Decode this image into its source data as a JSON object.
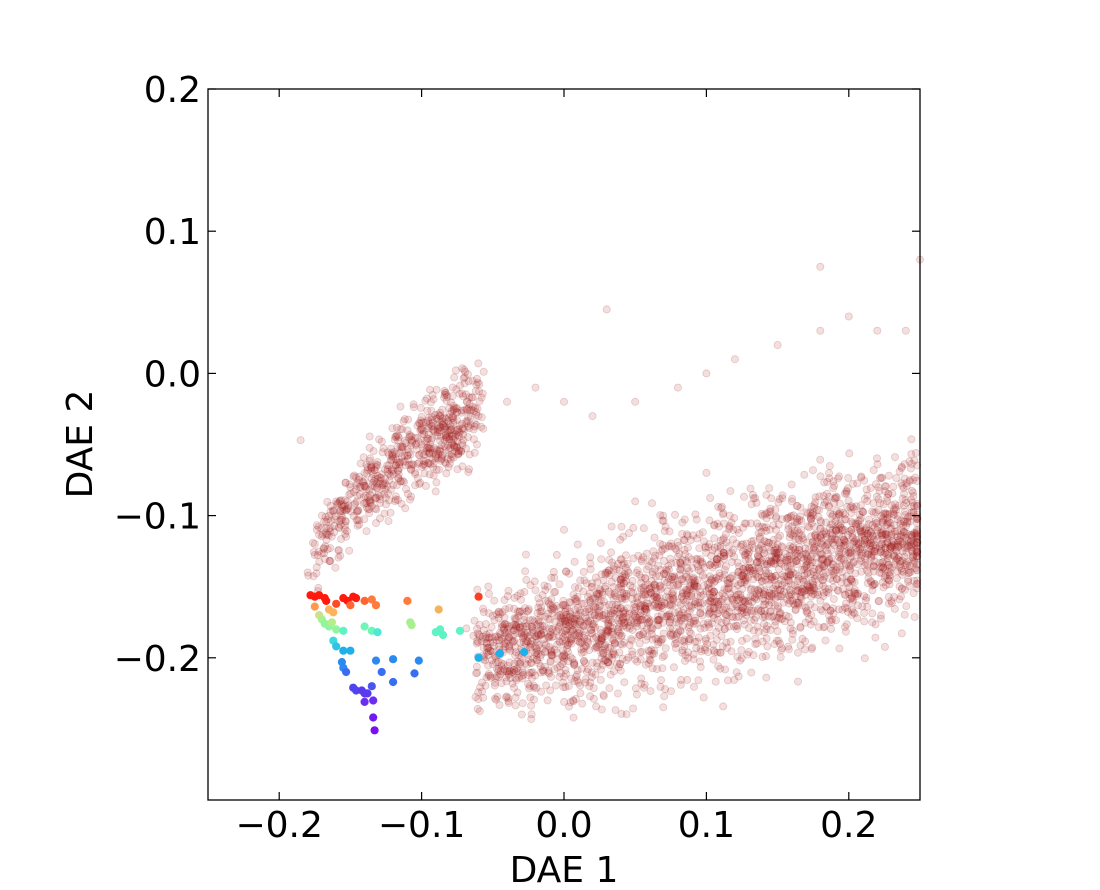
{
  "chart_data": {
    "type": "scatter",
    "title": "",
    "xlabel": "DAE 1",
    "ylabel": "DAE 2",
    "xlim": [
      -0.25,
      0.25
    ],
    "ylim": [
      -0.3,
      0.2
    ],
    "grid": false,
    "legend": "none",
    "x_ticks": [
      {
        "value": -0.2,
        "label": "−0.2"
      },
      {
        "value": -0.1,
        "label": "−0.1"
      },
      {
        "value": 0.0,
        "label": "0.0"
      },
      {
        "value": 0.1,
        "label": "0.1"
      },
      {
        "value": 0.2,
        "label": "0.2"
      }
    ],
    "y_ticks": [
      {
        "value": 0.2,
        "label": "0.2"
      },
      {
        "value": 0.1,
        "label": "0.1"
      },
      {
        "value": 0.0,
        "label": "0.0"
      },
      {
        "value": -0.1,
        "label": "−0.1"
      },
      {
        "value": -0.2,
        "label": "−0.2"
      }
    ],
    "background_series": {
      "color": "#b22222",
      "opacity": 0.15,
      "approx_count": 3500,
      "shape": "curved band from (-0.18,-0.16) rising to (0.25,0.02)",
      "points_sample": [
        [
          -0.18,
          -0.14
        ],
        [
          -0.175,
          -0.12
        ],
        [
          -0.17,
          -0.1
        ],
        [
          -0.16,
          -0.09
        ],
        [
          -0.15,
          -0.08
        ],
        [
          -0.14,
          -0.07
        ],
        [
          -0.12,
          -0.06
        ],
        [
          -0.1,
          -0.05
        ],
        [
          -0.08,
          -0.04
        ],
        [
          -0.06,
          -0.03
        ],
        [
          -0.04,
          -0.02
        ],
        [
          -0.02,
          -0.01
        ],
        [
          0.0,
          -0.02
        ],
        [
          0.02,
          -0.03
        ],
        [
          0.05,
          -0.02
        ],
        [
          0.08,
          -0.01
        ],
        [
          0.1,
          0.0
        ],
        [
          0.12,
          0.01
        ],
        [
          0.15,
          0.02
        ],
        [
          0.18,
          0.03
        ],
        [
          0.2,
          0.04
        ],
        [
          0.22,
          0.03
        ],
        [
          0.24,
          0.03
        ],
        [
          0.25,
          0.08
        ],
        [
          -0.185,
          -0.047
        ],
        [
          0.03,
          0.045
        ],
        [
          0.18,
          0.075
        ],
        [
          0.05,
          -0.09
        ],
        [
          0.1,
          -0.07
        ],
        [
          0.0,
          -0.11
        ]
      ]
    },
    "highlight_series": {
      "colormap": "rainbow",
      "points": [
        [
          -0.178,
          -0.156,
          "#ff1a0d"
        ],
        [
          -0.175,
          -0.157,
          "#ff1a0d"
        ],
        [
          -0.172,
          -0.156,
          "#ff1a0d"
        ],
        [
          -0.168,
          -0.158,
          "#ff1a0d"
        ],
        [
          -0.167,
          -0.16,
          "#ff1a0d"
        ],
        [
          -0.16,
          -0.162,
          "#ff4a26"
        ],
        [
          -0.155,
          -0.158,
          "#ff1a0d"
        ],
        [
          -0.152,
          -0.16,
          "#ff1a0d"
        ],
        [
          -0.148,
          -0.157,
          "#ff1a0d"
        ],
        [
          -0.146,
          -0.158,
          "#ff1a0d"
        ],
        [
          -0.15,
          -0.163,
          "#ff6633"
        ],
        [
          -0.14,
          -0.16,
          "#ff6633"
        ],
        [
          -0.135,
          -0.159,
          "#ff7a3d"
        ],
        [
          -0.132,
          -0.163,
          "#ff7a3d"
        ],
        [
          -0.11,
          -0.16,
          "#ff7a3d"
        ],
        [
          -0.06,
          -0.157,
          "#ff3d1f"
        ],
        [
          -0.088,
          -0.166,
          "#f2b35e"
        ],
        [
          -0.175,
          -0.164,
          "#ff9a4d"
        ],
        [
          -0.165,
          -0.166,
          "#ffb259"
        ],
        [
          -0.162,
          -0.168,
          "#ffb259"
        ],
        [
          -0.172,
          -0.17,
          "#cfe08a"
        ],
        [
          -0.17,
          -0.173,
          "#a8f08f"
        ],
        [
          -0.168,
          -0.176,
          "#8ff59e"
        ],
        [
          -0.165,
          -0.178,
          "#8ff59e"
        ],
        [
          -0.16,
          -0.18,
          "#8ff59e"
        ],
        [
          -0.163,
          -0.175,
          "#b8ec8a"
        ],
        [
          -0.108,
          -0.175,
          "#a8f08f"
        ],
        [
          -0.107,
          -0.177,
          "#a8f08f"
        ],
        [
          -0.14,
          -0.178,
          "#6ef5b8"
        ],
        [
          -0.135,
          -0.181,
          "#6ef5b8"
        ],
        [
          -0.155,
          -0.181,
          "#5ef2c4"
        ],
        [
          -0.131,
          -0.182,
          "#4de8d6"
        ],
        [
          -0.09,
          -0.182,
          "#5ef2c4"
        ],
        [
          -0.087,
          -0.18,
          "#5ef2c4"
        ],
        [
          -0.085,
          -0.184,
          "#5ef2c4"
        ],
        [
          -0.073,
          -0.181,
          "#5ef2c4"
        ],
        [
          -0.162,
          -0.188,
          "#3dd9e0"
        ],
        [
          -0.16,
          -0.192,
          "#2ec4e6"
        ],
        [
          -0.155,
          -0.195,
          "#1fb0ea"
        ],
        [
          -0.15,
          -0.195,
          "#1fb0ea"
        ],
        [
          -0.06,
          -0.2,
          "#1fb0ea"
        ],
        [
          -0.045,
          -0.197,
          "#1fb0ea"
        ],
        [
          -0.028,
          -0.196,
          "#1fb0ea"
        ],
        [
          -0.132,
          -0.202,
          "#2b8af0"
        ],
        [
          -0.12,
          -0.201,
          "#2b8af0"
        ],
        [
          -0.102,
          -0.202,
          "#2b8af0"
        ],
        [
          -0.156,
          -0.203,
          "#2b8af0"
        ],
        [
          -0.155,
          -0.207,
          "#2b8af0"
        ],
        [
          -0.153,
          -0.21,
          "#3a6ef2"
        ],
        [
          -0.128,
          -0.21,
          "#3a6ef2"
        ],
        [
          -0.105,
          -0.211,
          "#3a6ef2"
        ],
        [
          -0.12,
          -0.217,
          "#3a6ef2"
        ],
        [
          -0.135,
          -0.22,
          "#4a55f0"
        ],
        [
          -0.148,
          -0.221,
          "#4f45ee"
        ],
        [
          -0.146,
          -0.223,
          "#4f45ee"
        ],
        [
          -0.142,
          -0.223,
          "#5a3aef"
        ],
        [
          -0.14,
          -0.225,
          "#5a3aef"
        ],
        [
          -0.138,
          -0.225,
          "#5a3aef"
        ],
        [
          -0.134,
          -0.23,
          "#6a2ef0"
        ],
        [
          -0.14,
          -0.231,
          "#6a2ef0"
        ],
        [
          -0.134,
          -0.242,
          "#7318f0"
        ],
        [
          -0.133,
          -0.251,
          "#7a10ef"
        ]
      ]
    }
  }
}
